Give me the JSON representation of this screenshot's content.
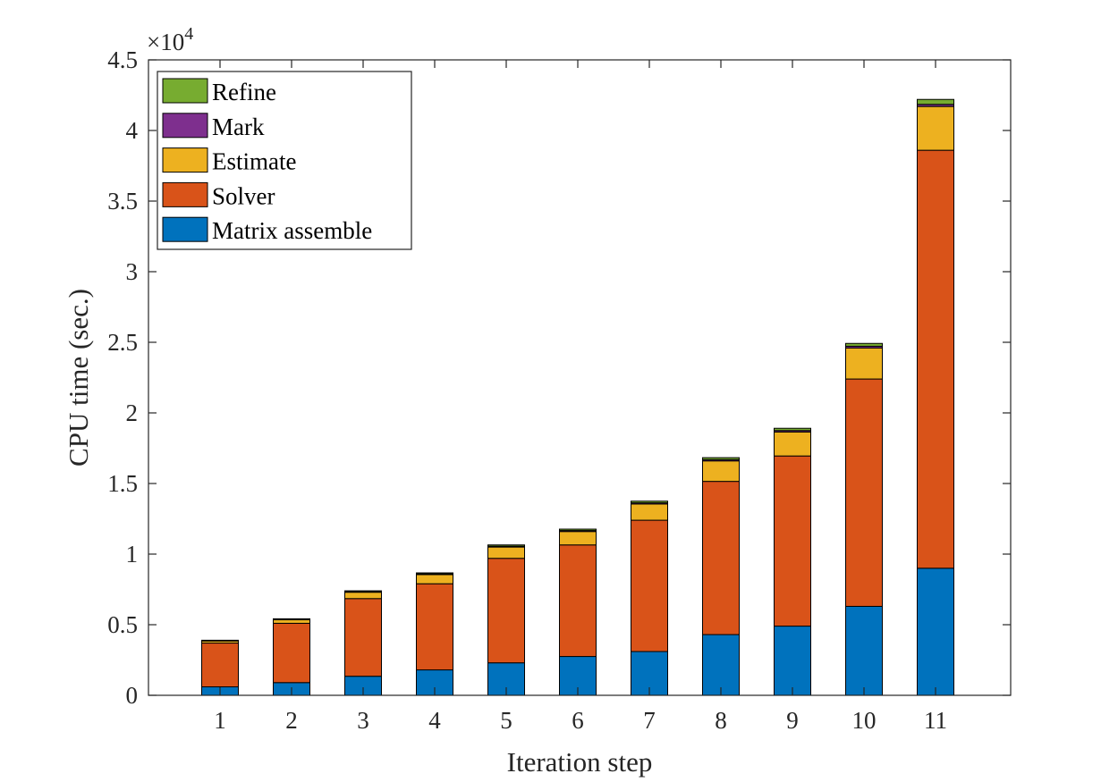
{
  "chart_data": {
    "type": "bar",
    "stacked": true,
    "title": "",
    "xlabel": "Iteration step",
    "ylabel": "CPU time (sec.)",
    "y_exponent_label": "×10",
    "y_exponent_power": "4",
    "ylim": [
      0,
      45000
    ],
    "yticks": [
      0,
      5000,
      10000,
      15000,
      20000,
      25000,
      30000,
      35000,
      40000,
      45000
    ],
    "ytick_labels": [
      "0",
      "0.5",
      "1",
      "1.5",
      "2",
      "2.5",
      "3",
      "3.5",
      "4",
      "4.5"
    ],
    "categories": [
      "1",
      "2",
      "3",
      "4",
      "5",
      "6",
      "7",
      "8",
      "9",
      "10",
      "11"
    ],
    "legend_position": "top-left",
    "series": [
      {
        "name": "Matrix assemble",
        "color": "#0072BD",
        "values": [
          600,
          900,
          1350,
          1800,
          2300,
          2750,
          3100,
          4300,
          4900,
          6300,
          9000
        ]
      },
      {
        "name": "Solver",
        "color": "#D95319",
        "values": [
          3100,
          4200,
          5500,
          6100,
          7400,
          7900,
          9300,
          10850,
          12050,
          16100,
          29600
        ]
      },
      {
        "name": "Estimate",
        "color": "#EDB120",
        "values": [
          150,
          250,
          450,
          650,
          800,
          950,
          1150,
          1450,
          1700,
          2200,
          3100
        ]
      },
      {
        "name": "Mark",
        "color": "#7E2F8E",
        "values": [
          20,
          30,
          40,
          50,
          60,
          70,
          80,
          90,
          100,
          120,
          150
        ]
      },
      {
        "name": "Refine",
        "color": "#77AC30",
        "values": [
          30,
          40,
          60,
          70,
          90,
          100,
          120,
          140,
          160,
          200,
          350
        ]
      }
    ]
  }
}
